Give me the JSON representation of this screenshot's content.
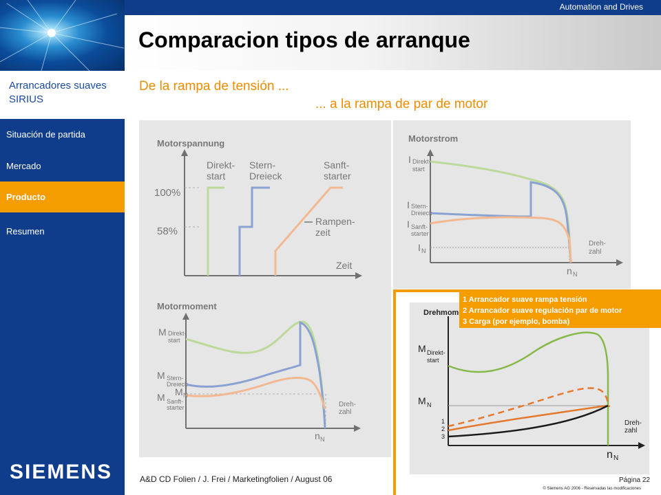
{
  "header": {
    "division": "Automation and Drives",
    "title": "Comparacion tipos de arranque"
  },
  "sidebar": {
    "section": "Arrancadores suaves SIRIUS",
    "items": [
      {
        "label": "Situación de partida"
      },
      {
        "label": "Mercado"
      },
      {
        "label": "Producto"
      },
      {
        "label": "Resumen"
      }
    ],
    "logo": "SIEMENS"
  },
  "subtitle": {
    "line1": "De la rampa de tensión ...",
    "line2": "... a la rampa de par de motor"
  },
  "charts": {
    "voltage": {
      "title": "Motorspannung",
      "y_labels": [
        "100%",
        "58%"
      ],
      "curve_labels": {
        "direkt": [
          "Direkt-",
          "start"
        ],
        "stern": [
          "Stern-",
          "Dreieck"
        ],
        "sanft": [
          "Sanft-",
          "starter"
        ],
        "rampen": [
          "Rampen-",
          "zeit"
        ]
      },
      "xlabel": "Zeit"
    },
    "current": {
      "title": "Motorstrom",
      "labels": {
        "i": "I",
        "direkt": [
          "Direkt-",
          "start"
        ],
        "stern": [
          "Stern-",
          "Dreieck"
        ],
        "sanft": [
          "Sanft-",
          "starter"
        ],
        "in_main": "I",
        "in_sub": "N",
        "nn_main": "n",
        "nn_sub": "N",
        "xlabel": [
          "Dreh-",
          "zahl"
        ]
      }
    },
    "torque": {
      "title": "Motormoment",
      "labels": {
        "m": "M",
        "direkt": [
          "Direkt-",
          "start"
        ],
        "stern": [
          "Stern-",
          "Dreieck"
        ],
        "sanft": [
          "Sanft-",
          "starter"
        ],
        "mn_main": "M",
        "mn_sub": "N",
        "nn_main": "n",
        "nn_sub": "N",
        "xlabel": [
          "Dreh-",
          "zahl"
        ]
      }
    },
    "drehmoment": {
      "title": "Drehmoment",
      "labels": {
        "m": "M",
        "direkt": [
          "Direkt-",
          "start"
        ],
        "mn_main": "M",
        "mn_sub": "N",
        "nn_main": "n",
        "nn_sub": "N",
        "curve_numbers": [
          "1",
          "2",
          "3"
        ],
        "xlabel": [
          "Dreh-",
          "zahl"
        ]
      }
    }
  },
  "legend": {
    "items": [
      "1 Arrancador suave rampa tensión",
      "2 Arrancador suave regulación par de motor",
      "3 Carga (por ejemplo, bomba)"
    ]
  },
  "footer": {
    "credit": "A&D CD Folien / J. Frei / Marketingfolien / August 06",
    "page": "Página 22",
    "copyright": "© Siemens AG 2006 - Reservadas las modificaciones"
  },
  "colors": {
    "brand_blue": "#0f3d8c",
    "accent_orange": "#f59c00",
    "direkt_green": "#bcd99a",
    "stern_blue": "#8aa2d2",
    "sanft_orange": "#f4b890",
    "load_black": "#1a1a1a",
    "curve_green": "#86b84a",
    "curve_orange": "#e4782c"
  }
}
